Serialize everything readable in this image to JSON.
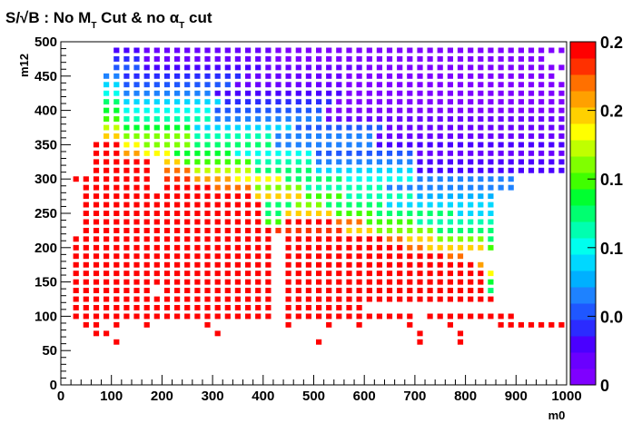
{
  "chart_data": {
    "type": "heatmap",
    "title": "S/√B :  No M_T Cut & no α_T cut",
    "xlabel": "m0",
    "ylabel": "m12",
    "xlim": [
      0,
      1000
    ],
    "ylim": [
      0,
      500
    ],
    "x_ticks": [
      "0",
      "100",
      "200",
      "300",
      "400",
      "500",
      "600",
      "700",
      "800",
      "900",
      "1000"
    ],
    "y_ticks": [
      "0",
      "50",
      "100",
      "150",
      "200",
      "250",
      "300",
      "350",
      "400",
      "450",
      "500"
    ],
    "z_range": [
      0,
      0.25
    ],
    "colorbar_ticks": [
      {
        "value": 0.0,
        "label": "0"
      },
      {
        "value": 0.05,
        "label": "0.0"
      },
      {
        "value": 0.1,
        "label": "0.1"
      },
      {
        "value": 0.15,
        "label": "0.1"
      },
      {
        "value": 0.2,
        "label": "0.2"
      },
      {
        "value": 0.25,
        "label": "0.2"
      }
    ],
    "grid": false,
    "bin_size": {
      "dx": 20,
      "dy": 12.5
    },
    "cells_by_row": [
      {
        "m12": 87.5,
        "ranges": [
          [
            40,
            80,
            0.25
          ],
          [
            100,
            120,
            0.25
          ],
          [
            160,
            180,
            0.25
          ],
          [
            280,
            300,
            0.25
          ],
          [
            440,
            460,
            0.25
          ],
          [
            520,
            540,
            0.25
          ],
          [
            580,
            600,
            0.25
          ],
          [
            680,
            700,
            0.25
          ],
          [
            760,
            780,
            0.25
          ],
          [
            860,
            1000,
            0.25
          ]
        ]
      },
      {
        "m12": 100,
        "ranges": [
          [
            20,
            180,
            0.25
          ],
          [
            180,
            320,
            0.25
          ],
          [
            320,
            420,
            0.25
          ],
          [
            440,
            700,
            0.25
          ],
          [
            720,
            900,
            0.25
          ]
        ]
      },
      {
        "m12": 112.5,
        "ranges": [
          [
            20,
            420,
            0.25
          ],
          [
            440,
            600,
            0.25
          ]
        ]
      },
      {
        "m12": 125,
        "ranges": [
          [
            20,
            420,
            0.25
          ],
          [
            440,
            860,
            0.25
          ]
        ]
      },
      {
        "m12": 137.5,
        "ranges": [
          [
            20,
            180,
            0.25
          ],
          [
            200,
            420,
            0.25
          ],
          [
            440,
            840,
            0.25
          ],
          [
            840,
            860,
            0.12
          ]
        ]
      },
      {
        "m12": 150,
        "ranges": [
          [
            20,
            420,
            0.25
          ],
          [
            440,
            840,
            0.25
          ],
          [
            840,
            860,
            0.14
          ]
        ]
      },
      {
        "m12": 162.5,
        "ranges": [
          [
            20,
            420,
            0.25
          ],
          [
            440,
            840,
            0.25
          ],
          [
            840,
            860,
            0.18
          ]
        ]
      },
      {
        "m12": 175,
        "ranges": [
          [
            20,
            420,
            0.25
          ],
          [
            440,
            820,
            0.25
          ],
          [
            820,
            840,
            0.21
          ]
        ]
      },
      {
        "m12": 187.5,
        "ranges": [
          [
            20,
            420,
            0.25
          ],
          [
            440,
            760,
            0.25
          ],
          [
            760,
            800,
            0.22
          ]
        ]
      },
      {
        "m12": 200,
        "ranges": [
          [
            20,
            420,
            0.25
          ],
          [
            440,
            680,
            0.25
          ],
          [
            680,
            720,
            0.22
          ],
          [
            720,
            840,
            0.2
          ],
          [
            840,
            860,
            0.15
          ]
        ]
      },
      {
        "m12": 212.5,
        "ranges": [
          [
            20,
            420,
            0.25
          ],
          [
            440,
            640,
            0.25
          ],
          [
            640,
            680,
            0.22
          ],
          [
            680,
            740,
            0.2
          ],
          [
            740,
            840,
            0.16
          ],
          [
            840,
            860,
            0.12
          ]
        ]
      },
      {
        "m12": 225,
        "ranges": [
          [
            40,
            420,
            0.25
          ],
          [
            420,
            560,
            0.23
          ],
          [
            560,
            620,
            0.2
          ],
          [
            620,
            740,
            0.16
          ],
          [
            740,
            860,
            0.12
          ]
        ]
      },
      {
        "m12": 237.5,
        "ranges": [
          [
            40,
            400,
            0.25
          ],
          [
            400,
            440,
            0.15
          ],
          [
            440,
            540,
            0.25
          ],
          [
            540,
            600,
            0.22
          ],
          [
            600,
            700,
            0.15
          ],
          [
            700,
            860,
            0.11
          ]
        ]
      },
      {
        "m12": 250,
        "ranges": [
          [
            40,
            400,
            0.25
          ],
          [
            400,
            440,
            0.12
          ],
          [
            440,
            540,
            0.2
          ],
          [
            540,
            620,
            0.15
          ],
          [
            620,
            780,
            0.12
          ],
          [
            780,
            860,
            0.09
          ]
        ]
      },
      {
        "m12": 262.5,
        "ranges": [
          [
            40,
            400,
            0.25
          ],
          [
            400,
            460,
            0.13
          ],
          [
            460,
            520,
            0.16
          ],
          [
            520,
            640,
            0.12
          ],
          [
            640,
            860,
            0.09
          ]
        ]
      },
      {
        "m12": 275,
        "ranges": [
          [
            40,
            380,
            0.25
          ],
          [
            380,
            480,
            0.2
          ],
          [
            480,
            560,
            0.15
          ],
          [
            560,
            700,
            0.11
          ],
          [
            700,
            860,
            0.08
          ]
        ]
      },
      {
        "m12": 287.5,
        "ranges": [
          [
            40,
            180,
            0.25
          ],
          [
            200,
            300,
            0.25
          ],
          [
            300,
            380,
            0.22
          ],
          [
            380,
            480,
            0.16
          ],
          [
            480,
            640,
            0.11
          ],
          [
            640,
            900,
            0.07
          ]
        ]
      },
      {
        "m12": 300,
        "ranges": [
          [
            20,
            180,
            0.25
          ],
          [
            200,
            260,
            0.23
          ],
          [
            260,
            340,
            0.21
          ],
          [
            340,
            440,
            0.18
          ],
          [
            440,
            560,
            0.13
          ],
          [
            560,
            700,
            0.1
          ],
          [
            700,
            900,
            0.06
          ]
        ]
      },
      {
        "m12": 312.5,
        "ranges": [
          [
            60,
            180,
            0.25
          ],
          [
            200,
            260,
            0.22
          ],
          [
            260,
            380,
            0.17
          ],
          [
            380,
            500,
            0.12
          ],
          [
            500,
            700,
            0.09
          ],
          [
            700,
            1000,
            0.03
          ]
        ]
      },
      {
        "m12": 325,
        "ranges": [
          [
            60,
            180,
            0.25
          ],
          [
            200,
            240,
            0.2
          ],
          [
            240,
            380,
            0.15
          ],
          [
            380,
            500,
            0.11
          ],
          [
            500,
            700,
            0.07
          ],
          [
            700,
            1000,
            0.03
          ]
        ]
      },
      {
        "m12": 337.5,
        "ranges": [
          [
            60,
            120,
            0.25
          ],
          [
            120,
            160,
            0.21
          ],
          [
            160,
            220,
            0.19
          ],
          [
            220,
            340,
            0.14
          ],
          [
            340,
            500,
            0.1
          ],
          [
            500,
            700,
            0.05
          ],
          [
            700,
            1000,
            0.02
          ]
        ]
      },
      {
        "m12": 350,
        "ranges": [
          [
            60,
            120,
            0.24
          ],
          [
            120,
            160,
            0.19
          ],
          [
            160,
            260,
            0.16
          ],
          [
            260,
            420,
            0.12
          ],
          [
            420,
            620,
            0.07
          ],
          [
            620,
            1000,
            0.03
          ]
        ]
      },
      {
        "m12": 362.5,
        "ranges": [
          [
            80,
            120,
            0.2
          ],
          [
            120,
            260,
            0.16
          ],
          [
            260,
            420,
            0.11
          ],
          [
            420,
            620,
            0.06
          ],
          [
            620,
            1000,
            0.02
          ]
        ]
      },
      {
        "m12": 375,
        "ranges": [
          [
            80,
            120,
            0.17
          ],
          [
            120,
            260,
            0.14
          ],
          [
            260,
            460,
            0.09
          ],
          [
            460,
            640,
            0.05
          ],
          [
            640,
            1000,
            0.02
          ]
        ]
      },
      {
        "m12": 387.5,
        "ranges": [
          [
            80,
            120,
            0.15
          ],
          [
            120,
            300,
            0.11
          ],
          [
            300,
            520,
            0.07
          ],
          [
            520,
            1000,
            0.02
          ]
        ]
      },
      {
        "m12": 400,
        "ranges": [
          [
            80,
            120,
            0.14
          ],
          [
            120,
            300,
            0.1
          ],
          [
            300,
            520,
            0.05
          ],
          [
            520,
            1000,
            0.01
          ]
        ]
      },
      {
        "m12": 412.5,
        "ranges": [
          [
            80,
            120,
            0.12
          ],
          [
            120,
            320,
            0.09
          ],
          [
            320,
            540,
            0.04
          ],
          [
            540,
            1000,
            0.01
          ]
        ]
      },
      {
        "m12": 425,
        "ranges": [
          [
            80,
            120,
            0.1
          ],
          [
            120,
            300,
            0.06
          ],
          [
            300,
            560,
            0.03
          ],
          [
            560,
            1000,
            0.01
          ]
        ]
      },
      {
        "m12": 437.5,
        "ranges": [
          [
            80,
            120,
            0.09
          ],
          [
            120,
            340,
            0.05
          ],
          [
            340,
            560,
            0.02
          ],
          [
            560,
            1000,
            0.01
          ]
        ]
      },
      {
        "m12": 450,
        "ranges": [
          [
            80,
            120,
            0.07
          ],
          [
            120,
            360,
            0.04
          ],
          [
            360,
            560,
            0.02
          ],
          [
            560,
            980,
            0.01
          ]
        ]
      },
      {
        "m12": 462.5,
        "ranges": [
          [
            100,
            160,
            0.05
          ],
          [
            160,
            400,
            0.03
          ],
          [
            400,
            600,
            0.02
          ],
          [
            600,
            1000,
            0.01
          ]
        ]
      },
      {
        "m12": 475,
        "ranges": [
          [
            100,
            160,
            0.04
          ],
          [
            160,
            420,
            0.02
          ],
          [
            420,
            600,
            0.01
          ],
          [
            600,
            960,
            0.01
          ]
        ]
      },
      {
        "m12": 487.5,
        "ranges": [
          [
            100,
            160,
            0.03
          ],
          [
            160,
            420,
            0.02
          ],
          [
            420,
            600,
            0.01
          ],
          [
            600,
            1000,
            0.01
          ]
        ]
      }
    ],
    "extra_cells": [
      {
        "m0": 60,
        "m12": 75,
        "z": 0.25
      },
      {
        "m0": 80,
        "m12": 75,
        "z": 0.25
      },
      {
        "m0": 300,
        "m12": 75,
        "z": 0.25
      },
      {
        "m0": 700,
        "m12": 75,
        "z": 0.25
      },
      {
        "m0": 780,
        "m12": 75,
        "z": 0.25
      },
      {
        "m0": 100,
        "m12": 62.5,
        "z": 0.25
      },
      {
        "m0": 500,
        "m12": 62.5,
        "z": 0.25
      },
      {
        "m0": 700,
        "m12": 62.5,
        "z": 0.25
      },
      {
        "m0": 780,
        "m12": 62.5,
        "z": 0.25
      }
    ]
  },
  "colors": {
    "palette": [
      "#7f00ff",
      "#6a00ff",
      "#4a00ff",
      "#2b2bff",
      "#1f57ff",
      "#1e82ff",
      "#00b0ff",
      "#00d8ff",
      "#00ffee",
      "#00ffb0",
      "#00ff70",
      "#00ff30",
      "#40ff00",
      "#80ff00",
      "#c0ff00",
      "#ffff00",
      "#ffd000",
      "#ffa000",
      "#ff7000",
      "#ff3000",
      "#ff0000"
    ]
  }
}
